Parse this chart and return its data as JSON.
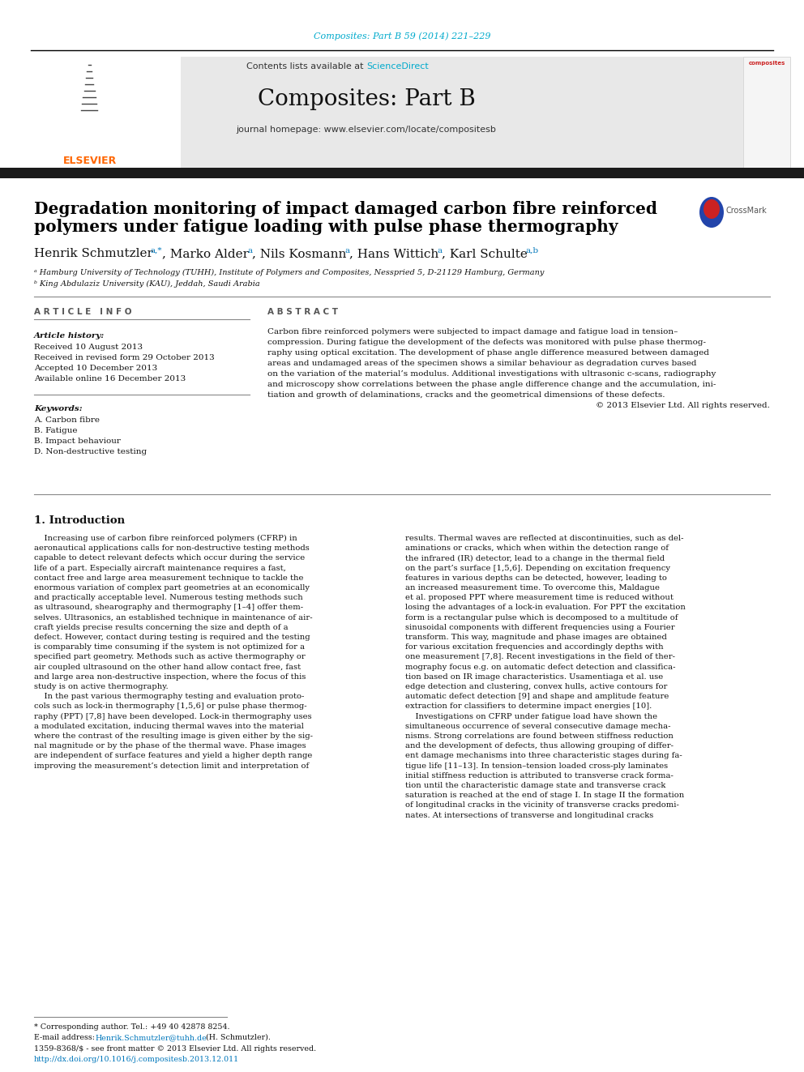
{
  "page_bg": "#ffffff",
  "top_citation": "Composites: Part B 59 (2014) 221–229",
  "top_citation_color": "#00aacc",
  "journal_title": "Composites: Part B",
  "header_bg": "#e8e8e8",
  "contents_line": "Contents lists available at ",
  "sciencedirect": "ScienceDirect",
  "sciencedirect_color": "#00aacc",
  "journal_homepage": "journal homepage: www.elsevier.com/locate/compositesb",
  "elsevier_color": "#ff6600",
  "article_info_title": "ARTICLE INFO",
  "abstract_title": "ABSTRACT",
  "article_history_title": "Article history:",
  "article_history": "Received 10 August 2013\nReceived in revised form 29 October 2013\nAccepted 10 December 2013\nAvailable online 16 December 2013",
  "keywords_title": "Keywords:",
  "keywords": "A. Carbon fibre\nB. Fatigue\nB. Impact behaviour\nD. Non-destructive testing",
  "intro_title": "1. Introduction",
  "footnote_star": "* Corresponding author. Tel.: +49 40 42878 8254.",
  "footnote_email_link": "Henrik.Schmutzler@tuhh.de",
  "issn_line": "1359-8368/$ - see front matter © 2013 Elsevier Ltd. All rights reserved.",
  "doi_line": "http://dx.doi.org/10.1016/j.compositesb.2013.12.011",
  "dark_bar_color": "#1a1a1a",
  "link_color": "#0077bb",
  "affil_a": "ᵃ Hamburg University of Technology (TUHH), Institute of Polymers and Composites, Nesspried 5, D-21129 Hamburg, Germany",
  "affil_b": "ᵇ King Abdulaziz University (KAU), Jeddah, Saudi Arabia",
  "abstract_lines": [
    "Carbon fibre reinforced polymers were subjected to impact damage and fatigue load in tension–",
    "compression. During fatigue the development of the defects was monitored with pulse phase thermog-",
    "raphy using optical excitation. The development of phase angle difference measured between damaged",
    "areas and undamaged areas of the specimen shows a similar behaviour as degradation curves based",
    "on the variation of the material’s modulus. Additional investigations with ultrasonic c-scans, radiography",
    "and microscopy show correlations between the phase angle difference change and the accumulation, ini-",
    "tiation and growth of delaminations, cracks and the geometrical dimensions of these defects.",
    "© 2013 Elsevier Ltd. All rights reserved."
  ],
  "left_intro": [
    "    Increasing use of carbon fibre reinforced polymers (CFRP) in",
    "aeronautical applications calls for non-destructive testing methods",
    "capable to detect relevant defects which occur during the service",
    "life of a part. Especially aircraft maintenance requires a fast,",
    "contact free and large area measurement technique to tackle the",
    "enormous variation of complex part geometries at an economically",
    "and practically acceptable level. Numerous testing methods such",
    "as ultrasound, shearography and thermography [1–4] offer them-",
    "selves. Ultrasonics, an established technique in maintenance of air-",
    "craft yields precise results concerning the size and depth of a",
    "defect. However, contact during testing is required and the testing",
    "is comparably time consuming if the system is not optimized for a",
    "specified part geometry. Methods such as active thermography or",
    "air coupled ultrasound on the other hand allow contact free, fast",
    "and large area non-destructive inspection, where the focus of this",
    "study is on active thermography.",
    "    In the past various thermography testing and evaluation proto-",
    "cols such as lock-in thermography [1,5,6] or pulse phase thermog-",
    "raphy (PPT) [7,8] have been developed. Lock-in thermography uses",
    "a modulated excitation, inducing thermal waves into the material",
    "where the contrast of the resulting image is given either by the sig-",
    "nal magnitude or by the phase of the thermal wave. Phase images",
    "are independent of surface features and yield a higher depth range",
    "improving the measurement’s detection limit and interpretation of"
  ],
  "right_intro": [
    "results. Thermal waves are reflected at discontinuities, such as del-",
    "aminations or cracks, which when within the detection range of",
    "the infrared (IR) detector, lead to a change in the thermal field",
    "on the part’s surface [1,5,6]. Depending on excitation frequency",
    "features in various depths can be detected, however, leading to",
    "an increased measurement time. To overcome this, Maldague",
    "et al. proposed PPT where measurement time is reduced without",
    "losing the advantages of a lock-in evaluation. For PPT the excitation",
    "form is a rectangular pulse which is decomposed to a multitude of",
    "sinusoidal components with different frequencies using a Fourier",
    "transform. This way, magnitude and phase images are obtained",
    "for various excitation frequencies and accordingly depths with",
    "one measurement [7,8]. Recent investigations in the field of ther-",
    "mography focus e.g. on automatic defect detection and classifica-",
    "tion based on IR image characteristics. Usamentiaga et al. use",
    "edge detection and clustering, convex hulls, active contours for",
    "automatic defect detection [9] and shape and amplitude feature",
    "extraction for classifiers to determine impact energies [10].",
    "    Investigations on CFRP under fatigue load have shown the",
    "simultaneous occurrence of several consecutive damage mecha-",
    "nisms. Strong correlations are found between stiffness reduction",
    "and the development of defects, thus allowing grouping of differ-",
    "ent damage mechanisms into three characteristic stages during fa-",
    "tigue life [11–13]. In tension–tension loaded cross-ply laminates",
    "initial stiffness reduction is attributed to transverse crack forma-",
    "tion until the characteristic damage state and transverse crack",
    "saturation is reached at the end of stage I. In stage II the formation",
    "of longitudinal cracks in the vicinity of transverse cracks predomi-",
    "nates. At intersections of transverse and longitudinal cracks"
  ]
}
